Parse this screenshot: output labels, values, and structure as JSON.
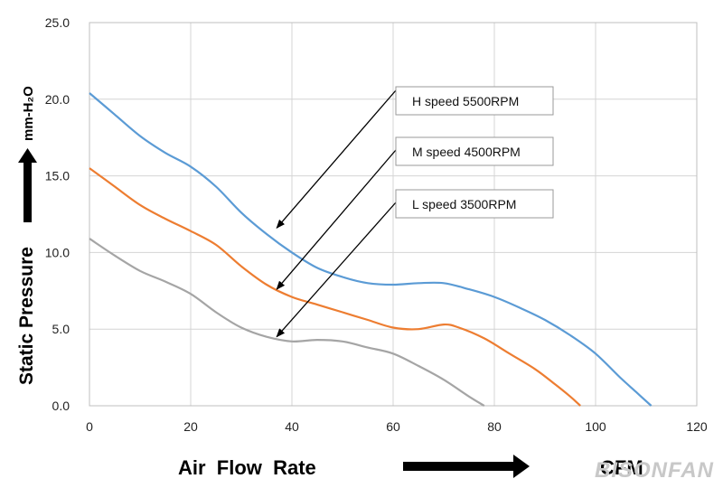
{
  "chart_data": {
    "type": "line",
    "xlabel": "Air  Flow  Rate",
    "xunit": "CFM",
    "ylabel": "Static  Pressure",
    "yunit": "mm-H₂O",
    "xlim": [
      0,
      120
    ],
    "ylim": [
      0,
      25
    ],
    "xticks": [
      0,
      20,
      40,
      60,
      80,
      100,
      120
    ],
    "yticks": [
      "0.0",
      "5.0",
      "10.0",
      "15.0",
      "20.0",
      "25.0"
    ],
    "grid": true,
    "series": [
      {
        "name": "H  speed  5500RPM",
        "color": "#5b9bd5",
        "points": [
          [
            0,
            20.4
          ],
          [
            5,
            19.0
          ],
          [
            10,
            17.6
          ],
          [
            15,
            16.5
          ],
          [
            20,
            15.6
          ],
          [
            25,
            14.3
          ],
          [
            30,
            12.6
          ],
          [
            35,
            11.2
          ],
          [
            40,
            10.0
          ],
          [
            45,
            9.0
          ],
          [
            50,
            8.4
          ],
          [
            55,
            8.0
          ],
          [
            60,
            7.9
          ],
          [
            65,
            8.0
          ],
          [
            70,
            8.0
          ],
          [
            75,
            7.6
          ],
          [
            80,
            7.1
          ],
          [
            85,
            6.4
          ],
          [
            90,
            5.6
          ],
          [
            95,
            4.6
          ],
          [
            100,
            3.4
          ],
          [
            105,
            1.8
          ],
          [
            108,
            0.9
          ],
          [
            111,
            0.0
          ]
        ]
      },
      {
        "name": "M  speed  4500RPM",
        "color": "#ed7d31",
        "points": [
          [
            0,
            15.5
          ],
          [
            5,
            14.3
          ],
          [
            10,
            13.1
          ],
          [
            15,
            12.2
          ],
          [
            20,
            11.4
          ],
          [
            25,
            10.5
          ],
          [
            30,
            9.1
          ],
          [
            35,
            7.9
          ],
          [
            40,
            7.1
          ],
          [
            45,
            6.6
          ],
          [
            50,
            6.1
          ],
          [
            55,
            5.6
          ],
          [
            60,
            5.1
          ],
          [
            65,
            5.0
          ],
          [
            70,
            5.3
          ],
          [
            73,
            5.1
          ],
          [
            78,
            4.4
          ],
          [
            83,
            3.4
          ],
          [
            88,
            2.4
          ],
          [
            92,
            1.4
          ],
          [
            95,
            0.6
          ],
          [
            97,
            0.0
          ]
        ]
      },
      {
        "name": "L  speed  3500RPM",
        "color": "#a5a5a5",
        "points": [
          [
            0,
            10.9
          ],
          [
            5,
            9.8
          ],
          [
            10,
            8.8
          ],
          [
            15,
            8.1
          ],
          [
            20,
            7.3
          ],
          [
            25,
            6.1
          ],
          [
            30,
            5.1
          ],
          [
            35,
            4.5
          ],
          [
            40,
            4.2
          ],
          [
            45,
            4.3
          ],
          [
            50,
            4.2
          ],
          [
            55,
            3.8
          ],
          [
            60,
            3.4
          ],
          [
            65,
            2.6
          ],
          [
            70,
            1.7
          ],
          [
            75,
            0.6
          ],
          [
            78,
            0.0
          ]
        ]
      }
    ],
    "annotations": [
      {
        "text": "H  speed  5500RPM",
        "series": 0,
        "target": [
          37,
          11.6
        ]
      },
      {
        "text": "M  speed  4500RPM",
        "series": 1,
        "target": [
          37,
          7.6
        ]
      },
      {
        "text": "L  speed  3500RPM",
        "series": 2,
        "target": [
          37,
          4.5
        ]
      }
    ]
  },
  "watermark": "BISONFAN"
}
